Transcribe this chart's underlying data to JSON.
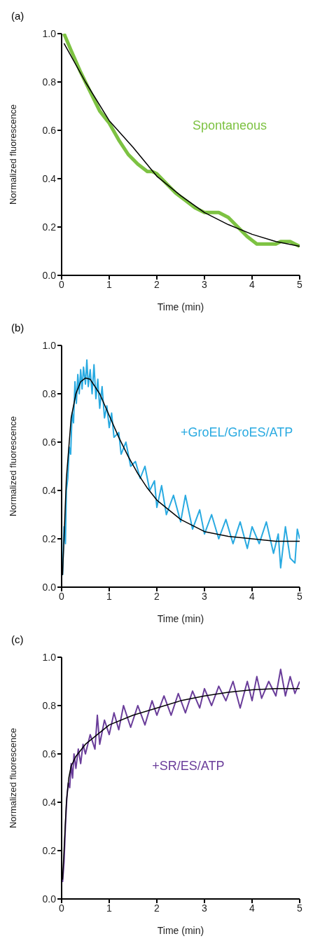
{
  "chart_data": [
    {
      "type": "line",
      "title": "(a)",
      "xlabel": "Time (min)",
      "ylabel": "Normalized fluorescence",
      "xlim": [
        0,
        5
      ],
      "xticks": [
        0,
        1,
        2,
        3,
        4,
        5
      ],
      "ylim": [
        0,
        1
      ],
      "yticks": [
        {
          "value": 0,
          "label": "0.0"
        },
        {
          "value": 0.2,
          "label": "0.2"
        },
        {
          "value": 0.4,
          "label": "0.4"
        },
        {
          "value": 0.6,
          "label": "0.6"
        },
        {
          "value": 0.8,
          "label": "0.8"
        },
        {
          "value": 1,
          "label": "1.0"
        }
      ],
      "marker": "none",
      "grid": false,
      "series": [
        {
          "name": "Spontaneous",
          "color": "#7dc242",
          "x": [
            0.05,
            0.2,
            0.4,
            0.6,
            0.8,
            1.0,
            1.2,
            1.4,
            1.6,
            1.8,
            1.9,
            2.0,
            2.2,
            2.4,
            2.6,
            2.8,
            3.0,
            3.2,
            3.3,
            3.5,
            3.7,
            3.9,
            4.1,
            4.3,
            4.5,
            4.6,
            4.8,
            4.9,
            5.0
          ],
          "values": [
            1.0,
            0.93,
            0.84,
            0.76,
            0.68,
            0.63,
            0.56,
            0.5,
            0.46,
            0.43,
            0.43,
            0.42,
            0.38,
            0.34,
            0.31,
            0.28,
            0.26,
            0.26,
            0.26,
            0.24,
            0.2,
            0.16,
            0.13,
            0.13,
            0.13,
            0.14,
            0.14,
            0.13,
            0.12
          ]
        },
        {
          "color": "#000000",
          "x": [
            0.05,
            0.5,
            1,
            1.5,
            2,
            2.5,
            3,
            3.5,
            4,
            4.5,
            5
          ],
          "values": [
            0.96,
            0.8,
            0.64,
            0.53,
            0.41,
            0.33,
            0.26,
            0.21,
            0.17,
            0.14,
            0.12
          ]
        }
      ]
    },
    {
      "type": "line",
      "title": "(b)",
      "xlabel": "Time (min)",
      "ylabel": "Normalized fluorescence",
      "xlim": [
        0,
        5
      ],
      "xticks": [
        0,
        1,
        2,
        3,
        4,
        5
      ],
      "ylim": [
        0,
        1
      ],
      "yticks": [
        {
          "value": 0,
          "label": "0.0"
        },
        {
          "value": 0.2,
          "label": "0.2"
        },
        {
          "value": 0.4,
          "label": "0.4"
        },
        {
          "value": 0.6,
          "label": "0.6"
        },
        {
          "value": 0.8,
          "label": "0.8"
        },
        {
          "value": 1,
          "label": "1.0"
        }
      ],
      "marker": "none",
      "grid": false,
      "series": [
        {
          "name": "+GroEL/GroES/ATP",
          "color": "#29aae1",
          "x": [
            0.02,
            0.05,
            0.08,
            0.1,
            0.13,
            0.16,
            0.19,
            0.22,
            0.25,
            0.28,
            0.31,
            0.34,
            0.37,
            0.4,
            0.43,
            0.46,
            0.5,
            0.53,
            0.56,
            0.6,
            0.64,
            0.68,
            0.72,
            0.76,
            0.8,
            0.85,
            0.9,
            0.95,
            1.0,
            1.05,
            1.1,
            1.2,
            1.25,
            1.35,
            1.45,
            1.55,
            1.65,
            1.75,
            1.85,
            1.95,
            2.0,
            2.1,
            2.2,
            2.35,
            2.5,
            2.6,
            2.75,
            2.9,
            3.0,
            3.15,
            3.3,
            3.45,
            3.6,
            3.75,
            3.9,
            4.0,
            4.15,
            4.3,
            4.45,
            4.55,
            4.6,
            4.7,
            4.8,
            4.9,
            4.95,
            5.0
          ],
          "values": [
            0.05,
            0.25,
            0.18,
            0.4,
            0.45,
            0.58,
            0.55,
            0.72,
            0.68,
            0.85,
            0.76,
            0.88,
            0.8,
            0.9,
            0.82,
            0.91,
            0.84,
            0.94,
            0.83,
            0.9,
            0.8,
            0.92,
            0.78,
            0.86,
            0.74,
            0.83,
            0.7,
            0.75,
            0.66,
            0.72,
            0.62,
            0.64,
            0.55,
            0.6,
            0.5,
            0.52,
            0.45,
            0.5,
            0.4,
            0.44,
            0.33,
            0.42,
            0.3,
            0.38,
            0.27,
            0.38,
            0.24,
            0.32,
            0.22,
            0.3,
            0.2,
            0.28,
            0.18,
            0.27,
            0.16,
            0.25,
            0.18,
            0.27,
            0.14,
            0.22,
            0.08,
            0.25,
            0.12,
            0.1,
            0.24,
            0.2
          ]
        },
        {
          "color": "#000000",
          "x": [
            0.02,
            0.1,
            0.2,
            0.3,
            0.4,
            0.5,
            0.6,
            0.8,
            1.0,
            1.2,
            1.4,
            1.6,
            1.8,
            2.0,
            2.5,
            3,
            3.5,
            4,
            4.5,
            5
          ],
          "values": [
            0.05,
            0.45,
            0.7,
            0.8,
            0.85,
            0.865,
            0.86,
            0.8,
            0.71,
            0.62,
            0.54,
            0.47,
            0.41,
            0.36,
            0.28,
            0.23,
            0.21,
            0.2,
            0.19,
            0.19
          ]
        }
      ]
    },
    {
      "type": "line",
      "title": "(c)",
      "xlabel": "Time (min)",
      "ylabel": "Normalized fluorescence",
      "xlim": [
        0,
        5
      ],
      "xticks": [
        0,
        1,
        2,
        3,
        4,
        5
      ],
      "ylim": [
        0,
        1
      ],
      "yticks": [
        {
          "value": 0,
          "label": "0.0"
        },
        {
          "value": 0.2,
          "label": "0.2"
        },
        {
          "value": 0.4,
          "label": "0.4"
        },
        {
          "value": 0.6,
          "label": "0.6"
        },
        {
          "value": 0.8,
          "label": "0.8"
        },
        {
          "value": 1,
          "label": "1.0"
        }
      ],
      "marker": "none",
      "grid": false,
      "series": [
        {
          "name": "+SR/ES/ATP",
          "color": "#6a3d9a",
          "x": [
            0.02,
            0.05,
            0.08,
            0.11,
            0.14,
            0.17,
            0.2,
            0.23,
            0.26,
            0.3,
            0.35,
            0.4,
            0.45,
            0.5,
            0.6,
            0.7,
            0.75,
            0.8,
            0.9,
            1.0,
            1.1,
            1.2,
            1.3,
            1.45,
            1.6,
            1.75,
            1.9,
            2.0,
            2.15,
            2.3,
            2.45,
            2.6,
            2.75,
            2.9,
            3.0,
            3.15,
            3.3,
            3.45,
            3.6,
            3.75,
            3.9,
            4.0,
            4.1,
            4.2,
            4.35,
            4.5,
            4.6,
            4.7,
            4.8,
            4.9,
            5.0
          ],
          "values": [
            0.07,
            0.15,
            0.3,
            0.42,
            0.48,
            0.46,
            0.56,
            0.5,
            0.6,
            0.54,
            0.62,
            0.56,
            0.64,
            0.6,
            0.68,
            0.62,
            0.76,
            0.64,
            0.74,
            0.68,
            0.77,
            0.7,
            0.8,
            0.71,
            0.8,
            0.72,
            0.82,
            0.76,
            0.84,
            0.76,
            0.85,
            0.77,
            0.86,
            0.79,
            0.87,
            0.8,
            0.88,
            0.82,
            0.9,
            0.79,
            0.9,
            0.82,
            0.92,
            0.83,
            0.9,
            0.84,
            0.95,
            0.84,
            0.92,
            0.85,
            0.9
          ]
        },
        {
          "color": "#000000",
          "x": [
            0.02,
            0.05,
            0.1,
            0.15,
            0.2,
            0.3,
            0.5,
            0.75,
            1,
            1.5,
            2,
            2.5,
            3,
            3.5,
            4,
            4.5,
            5
          ],
          "values": [
            0.08,
            0.2,
            0.4,
            0.5,
            0.55,
            0.59,
            0.64,
            0.68,
            0.72,
            0.76,
            0.79,
            0.82,
            0.84,
            0.855,
            0.865,
            0.87,
            0.87
          ]
        }
      ]
    }
  ]
}
